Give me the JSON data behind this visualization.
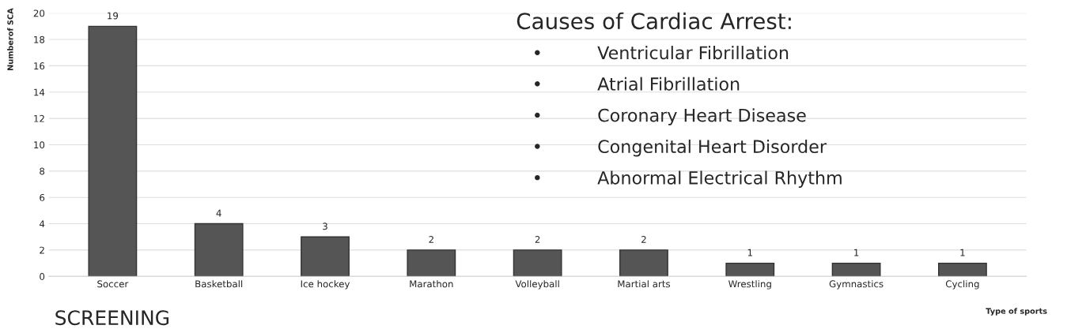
{
  "chart_data": {
    "type": "bar",
    "xlabel": "Type of sports",
    "ylabel": "Numberof SCA",
    "categories": [
      "Soccer",
      "Basketball",
      "Ice hockey",
      "Marathon",
      "Volleyball",
      "Martial arts",
      "Wrestling",
      "Gymnastics",
      "Cycling"
    ],
    "values": [
      19,
      4,
      3,
      2,
      2,
      2,
      1,
      1,
      1
    ],
    "color": "#555555",
    "ylim": [
      0,
      20
    ],
    "yticks": [
      0,
      2,
      4,
      6,
      8,
      10,
      12,
      14,
      16,
      18,
      20
    ],
    "grid": "y",
    "data_labels": true,
    "annotations": [
      "Causes of Cardiac Arrest:",
      "•\tVentricular Fibrillation",
      "•\tAtrial Fibrillation",
      "•\tCoronary Heart Disease",
      "•\tCongenital Heart Disorder",
      "•\tAbnormal Electrical Rhythm",
      "SCREENING"
    ]
  }
}
